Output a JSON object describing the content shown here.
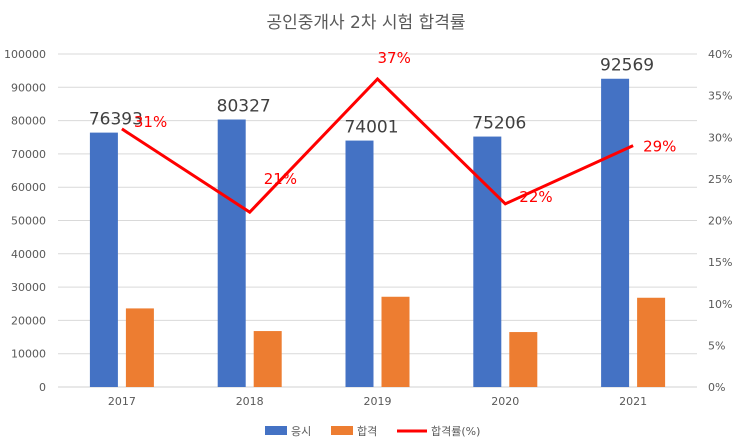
{
  "chart_data": {
    "type": "bar",
    "title": "공인중개사 2차 시험 합격률",
    "categories": [
      "2017",
      "2018",
      "2019",
      "2020",
      "2021"
    ],
    "series": [
      {
        "name": "응시",
        "kind": "bar",
        "axis": "left",
        "color": "#4472c4",
        "values": [
          76393,
          80327,
          74001,
          75206,
          92569
        ]
      },
      {
        "name": "합격",
        "kind": "bar",
        "axis": "left",
        "color": "#ed7d31",
        "values": [
          23600,
          16800,
          27100,
          16500,
          26800
        ]
      },
      {
        "name": "합격률(%)",
        "kind": "line",
        "axis": "right",
        "color": "#ff0000",
        "values": [
          31,
          21,
          37,
          22,
          29
        ]
      }
    ],
    "bar_labels": [
      "76393",
      "80327",
      "74001",
      "75206",
      "92569"
    ],
    "rate_labels": [
      "31%",
      "21%",
      "37%",
      "22%",
      "29%"
    ],
    "left_axis": {
      "min": 0,
      "max": 100000,
      "step": 10000,
      "ticks": [
        "0",
        "10000",
        "20000",
        "30000",
        "40000",
        "50000",
        "60000",
        "70000",
        "80000",
        "90000",
        "100000"
      ]
    },
    "right_axis": {
      "min": 0,
      "max": 40,
      "step": 5,
      "ticks": [
        "0%",
        "5%",
        "10%",
        "15%",
        "20%",
        "25%",
        "30%",
        "35%",
        "40%"
      ]
    },
    "grid": true,
    "legend_position": "bottom"
  }
}
